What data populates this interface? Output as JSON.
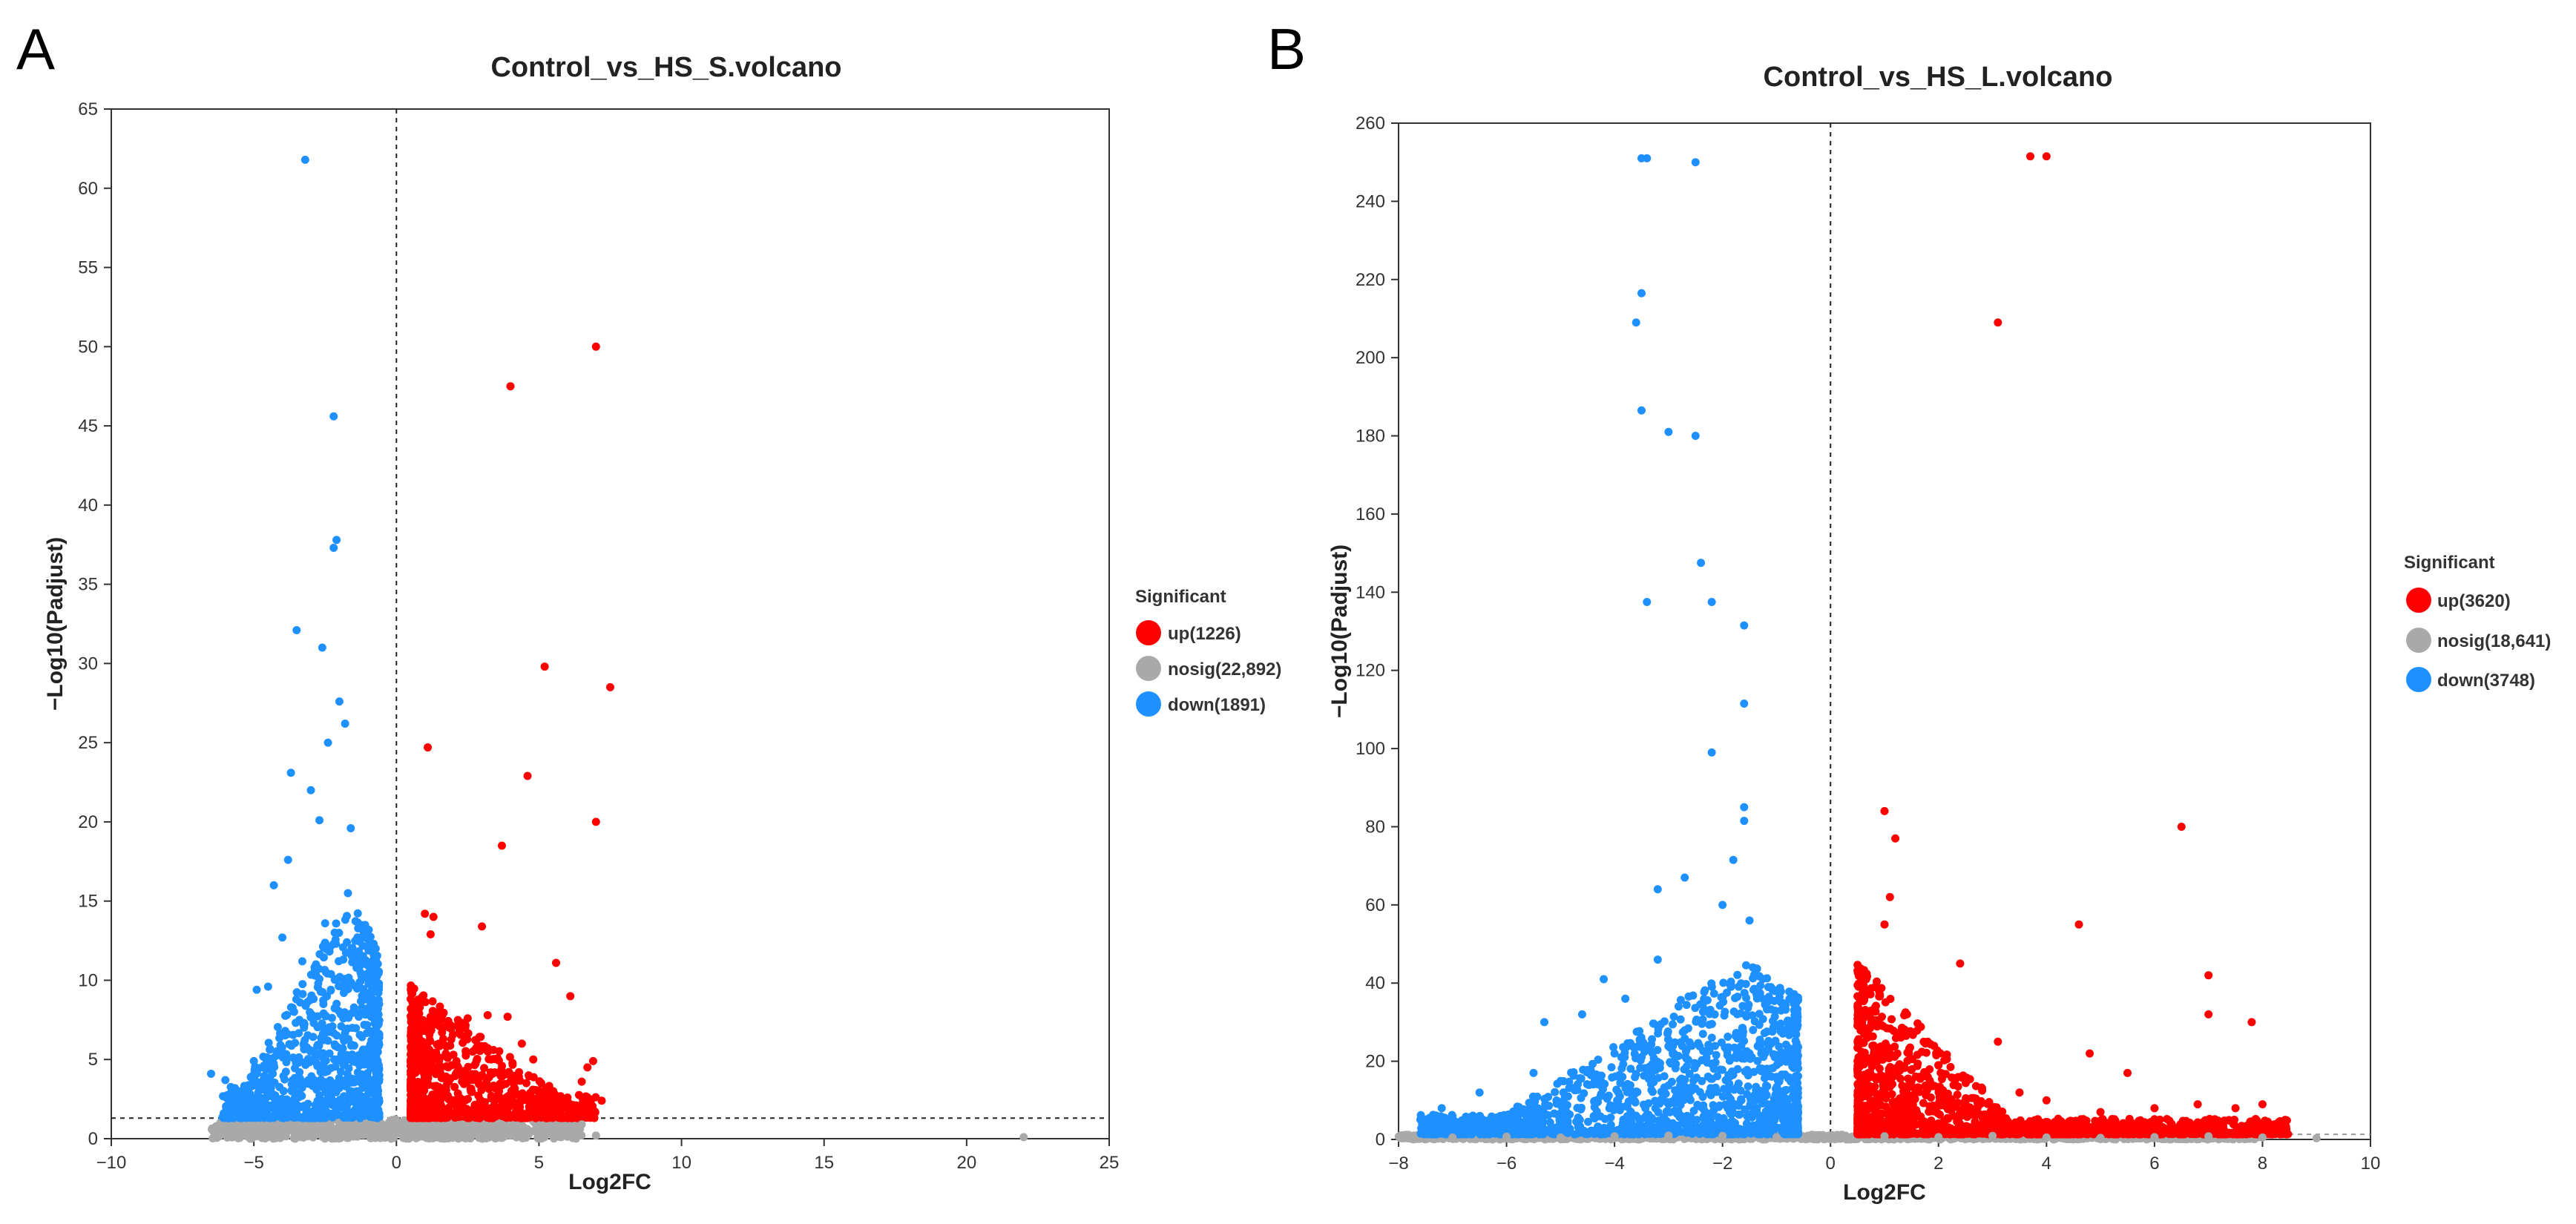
{
  "colors": {
    "up": "#ff0000",
    "nosig": "#a9a9a9",
    "down": "#1e90ff"
  },
  "chart_data": [
    {
      "id": "A",
      "panel_label": "A",
      "type": "scatter",
      "title": "Control_vs_HS_S.volcano",
      "xlabel": "Log2FC",
      "ylabel": "−Log10(Padjust)",
      "xlim": [
        -10,
        25
      ],
      "ylim": [
        0,
        65
      ],
      "xticks": [
        -10,
        -5,
        0,
        5,
        10,
        15,
        20,
        25
      ],
      "yticks": [
        0,
        5,
        10,
        15,
        20,
        25,
        30,
        35,
        40,
        45,
        50,
        55,
        60,
        65
      ],
      "vline": 0,
      "hline": 1.3,
      "legend": {
        "title": "Significant",
        "position": "right",
        "entries": [
          {
            "key": "up",
            "label": "up(1226)"
          },
          {
            "key": "nosig",
            "label": "nosig(22,892)"
          },
          {
            "key": "down",
            "label": "down(1891)"
          }
        ]
      },
      "series": [
        {
          "name": "up",
          "points": [
            [
              7.0,
              50.0
            ],
            [
              4.0,
              47.5
            ],
            [
              5.2,
              29.8
            ],
            [
              7.5,
              28.5
            ],
            [
              1.1,
              24.7
            ],
            [
              4.6,
              22.9
            ],
            [
              7.0,
              20.0
            ],
            [
              3.7,
              18.5
            ],
            [
              1.0,
              14.2
            ],
            [
              1.3,
              14.0
            ],
            [
              1.2,
              12.9
            ],
            [
              3.0,
              13.4
            ],
            [
              5.6,
              11.1
            ],
            [
              6.1,
              9.0
            ],
            [
              6.9,
              4.9
            ],
            [
              6.7,
              4.5
            ],
            [
              4.3,
              4.2
            ],
            [
              2.5,
              7.6
            ],
            [
              3.2,
              7.8
            ],
            [
              3.9,
              7.7
            ],
            [
              4.4,
              6.0
            ],
            [
              4.8,
              5.0
            ],
            [
              2.8,
              6.2
            ],
            [
              3.4,
              5.6
            ],
            [
              5.5,
              3.0
            ],
            [
              6.0,
              2.6
            ],
            [
              6.5,
              3.6
            ],
            [
              2.0,
              5.3
            ],
            [
              1.6,
              6.7
            ],
            [
              0.8,
              7.9
            ],
            [
              1.2,
              7.7
            ],
            [
              0.6,
              3.5
            ],
            [
              0.9,
              4.8
            ],
            [
              1.5,
              2.9
            ],
            [
              2.2,
              2.1
            ],
            [
              3.1,
              3.3
            ],
            [
              4.0,
              2.4
            ],
            [
              5.0,
              1.8
            ],
            [
              0.7,
              1.6
            ],
            [
              1.0,
              2.2
            ],
            [
              1.9,
              3.8
            ],
            [
              2.6,
              4.0
            ],
            [
              3.6,
              3.0
            ],
            [
              4.7,
              2.9
            ],
            [
              5.8,
              1.9
            ],
            [
              6.3,
              2.1
            ],
            [
              7.2,
              2.4
            ]
          ]
        },
        {
          "name": "down",
          "points": [
            [
              -3.2,
              61.8
            ],
            [
              -2.2,
              45.6
            ],
            [
              -2.1,
              37.8
            ],
            [
              -2.2,
              37.3
            ],
            [
              -3.5,
              32.1
            ],
            [
              -2.6,
              31.0
            ],
            [
              -2.0,
              27.6
            ],
            [
              -1.8,
              26.2
            ],
            [
              -2.4,
              25.0
            ],
            [
              -3.7,
              23.1
            ],
            [
              -3.0,
              22.0
            ],
            [
              -4.3,
              16.0
            ],
            [
              -3.8,
              17.6
            ],
            [
              -2.7,
              20.1
            ],
            [
              -1.6,
              19.6
            ],
            [
              -4.0,
              12.7
            ],
            [
              -4.5,
              9.6
            ],
            [
              -4.9,
              9.4
            ],
            [
              -3.3,
              11.2
            ],
            [
              -2.5,
              13.6
            ],
            [
              -1.7,
              15.5
            ],
            [
              -6.5,
              4.1
            ],
            [
              -6.0,
              3.7
            ],
            [
              -5.8,
              2.9
            ],
            [
              -5.5,
              2.6
            ],
            [
              -5.0,
              4.9
            ],
            [
              -4.7,
              3.3
            ],
            [
              -4.2,
              5.5
            ],
            [
              -3.9,
              6.8
            ],
            [
              -3.4,
              4.2
            ],
            [
              -2.9,
              7.3
            ],
            [
              -2.3,
              9.4
            ],
            [
              -1.5,
              11.7
            ],
            [
              -1.2,
              8.0
            ],
            [
              -0.9,
              5.7
            ],
            [
              -0.8,
              3.4
            ],
            [
              -1.0,
              2.4
            ],
            [
              -1.4,
              1.6
            ],
            [
              -2.0,
              5.0
            ],
            [
              -2.8,
              3.1
            ],
            [
              -3.6,
              2.0
            ],
            [
              -4.5,
              1.5
            ],
            [
              -5.2,
              1.8
            ]
          ]
        },
        {
          "name": "nosig",
          "points": [
            [
              -5.0,
              0.2
            ],
            [
              -4.0,
              0.3
            ],
            [
              -3.0,
              0.5
            ],
            [
              -2.0,
              0.8
            ],
            [
              -1.0,
              0.6
            ],
            [
              -0.5,
              0.9
            ],
            [
              0.0,
              0.4
            ],
            [
              0.5,
              0.8
            ],
            [
              1.0,
              0.6
            ],
            [
              2.0,
              0.5
            ],
            [
              3.0,
              0.3
            ],
            [
              4.0,
              0.2
            ],
            [
              5.0,
              0.4
            ],
            [
              6.0,
              0.5
            ],
            [
              6.5,
              0.9
            ],
            [
              7.0,
              0.2
            ],
            [
              22.0,
              0.1
            ]
          ]
        }
      ]
    },
    {
      "id": "B",
      "panel_label": "B",
      "type": "scatter",
      "title": "Control_vs_HS_L.volcano",
      "xlabel": "Log2FC",
      "ylabel": "−Log10(Padjust)",
      "xlim": [
        -8,
        10
      ],
      "ylim": [
        0,
        260
      ],
      "xticks": [
        -8,
        -6,
        -4,
        -2,
        0,
        2,
        4,
        6,
        8,
        10
      ],
      "yticks": [
        0,
        20,
        40,
        60,
        80,
        100,
        120,
        140,
        160,
        180,
        200,
        220,
        240,
        260
      ],
      "vline": 0,
      "hline": 1.3,
      "legend": {
        "title": "Significant",
        "position": "right",
        "entries": [
          {
            "key": "up",
            "label": "up(3620)"
          },
          {
            "key": "nosig",
            "label": "nosig(18,641)"
          },
          {
            "key": "down",
            "label": "down(3748)"
          }
        ]
      },
      "series": [
        {
          "name": "up",
          "points": [
            [
              3.7,
              251.5
            ],
            [
              4.0,
              251.5
            ],
            [
              3.1,
              209.0
            ],
            [
              1.0,
              84.0
            ],
            [
              6.5,
              80.0
            ],
            [
              1.2,
              77.0
            ],
            [
              7.0,
              42.0
            ],
            [
              4.6,
              55.0
            ],
            [
              1.1,
              62.0
            ],
            [
              1.0,
              55.0
            ],
            [
              2.4,
              45.0
            ],
            [
              1.8,
              25.0
            ],
            [
              3.1,
              25.0
            ],
            [
              7.8,
              30.0
            ],
            [
              7.0,
              32.0
            ],
            [
              2.0,
              19.0
            ],
            [
              3.5,
              12.0
            ],
            [
              4.0,
              10.0
            ],
            [
              5.0,
              7.0
            ],
            [
              6.0,
              8.0
            ],
            [
              6.8,
              9.0
            ],
            [
              7.5,
              8.0
            ],
            [
              8.0,
              9.0
            ],
            [
              2.5,
              9.0
            ],
            [
              1.5,
              15.0
            ],
            [
              5.5,
              17.0
            ],
            [
              4.8,
              22.0
            ]
          ]
        },
        {
          "name": "down",
          "points": [
            [
              -3.5,
              251.0
            ],
            [
              -3.4,
              251.0
            ],
            [
              -2.5,
              250.0
            ],
            [
              -3.5,
              216.5
            ],
            [
              -3.6,
              209.0
            ],
            [
              -3.5,
              186.5
            ],
            [
              -3.0,
              181.0
            ],
            [
              -2.5,
              180.0
            ],
            [
              -2.4,
              147.5
            ],
            [
              -3.4,
              137.5
            ],
            [
              -2.2,
              137.5
            ],
            [
              -1.6,
              131.5
            ],
            [
              -1.6,
              111.5
            ],
            [
              -2.2,
              99.0
            ],
            [
              -1.6,
              85.0
            ],
            [
              -1.6,
              81.5
            ],
            [
              -1.8,
              71.5
            ],
            [
              -2.7,
              67.0
            ],
            [
              -3.2,
              64.0
            ],
            [
              -2.0,
              60.0
            ],
            [
              -1.5,
              56.0
            ],
            [
              -4.2,
              41.0
            ],
            [
              -3.8,
              36.0
            ],
            [
              -4.6,
              32.0
            ],
            [
              -5.3,
              30.0
            ],
            [
              -4.0,
              22.0
            ],
            [
              -5.5,
              17.0
            ],
            [
              -6.5,
              12.0
            ],
            [
              -7.2,
              8.0
            ],
            [
              -7.0,
              6.0
            ],
            [
              -6.0,
              4.0
            ],
            [
              -5.0,
              6.0
            ],
            [
              -3.0,
              9.0
            ],
            [
              -2.5,
              13.0
            ],
            [
              -1.0,
              16.0
            ],
            [
              -0.8,
              7.0
            ],
            [
              -1.5,
              22.0
            ],
            [
              -3.2,
              46.0
            ]
          ]
        },
        {
          "name": "nosig",
          "points": [
            [
              -7.0,
              0.5
            ],
            [
              -6.0,
              0.7
            ],
            [
              -5.0,
              0.5
            ],
            [
              -4.0,
              0.8
            ],
            [
              -3.0,
              1.0
            ],
            [
              -2.0,
              0.9
            ],
            [
              -1.0,
              0.6
            ],
            [
              0.0,
              0.5
            ],
            [
              1.0,
              0.8
            ],
            [
              2.0,
              0.6
            ],
            [
              3.0,
              0.9
            ],
            [
              4.0,
              0.5
            ],
            [
              5.0,
              0.4
            ],
            [
              6.0,
              0.6
            ],
            [
              7.0,
              0.8
            ],
            [
              8.0,
              0.5
            ],
            [
              9.0,
              0.3
            ]
          ]
        }
      ]
    }
  ]
}
